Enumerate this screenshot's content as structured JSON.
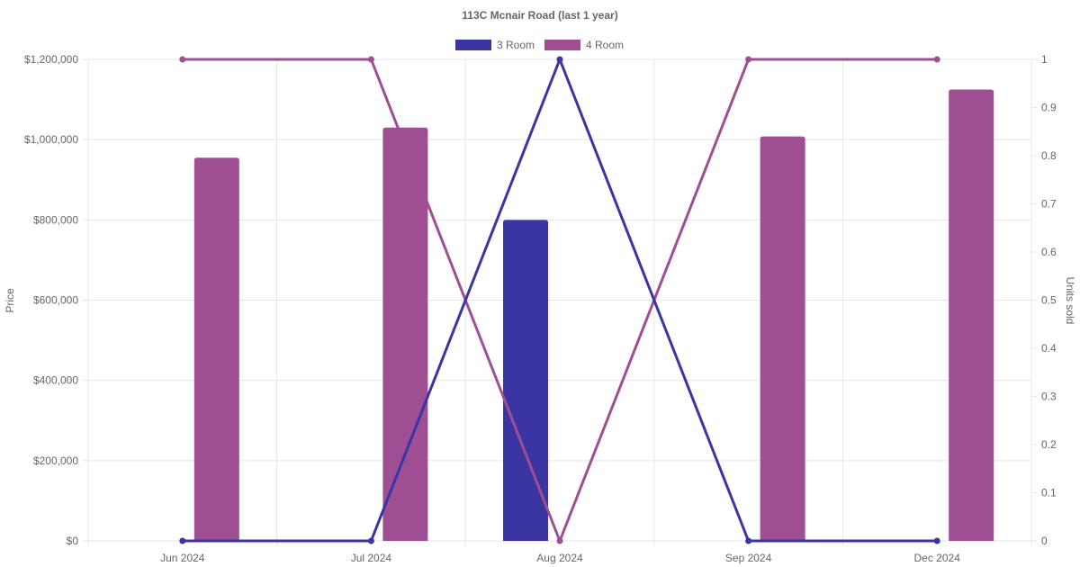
{
  "chart_data": {
    "type": "bar",
    "title": "113C Mcnair Road (last 1 year)",
    "categories": [
      "Jun 2024",
      "Jul 2024",
      "Aug 2024",
      "Sep 2024",
      "Dec 2024"
    ],
    "series": [
      {
        "name": "3 Room",
        "color": "#3a35a3",
        "price": [
          null,
          null,
          800000,
          null,
          null
        ],
        "units_sold": [
          0,
          0,
          1,
          0,
          0
        ]
      },
      {
        "name": "4 Room",
        "color": "#9e4f93",
        "price": [
          955000,
          1030000,
          null,
          1008000,
          1125000
        ],
        "units_sold": [
          1,
          1,
          0,
          1,
          1
        ]
      }
    ],
    "y_left": {
      "label": "Price",
      "range": [
        0,
        1200000
      ],
      "ticks": [
        "$0",
        "$200,000",
        "$400,000",
        "$600,000",
        "$800,000",
        "$1,000,000",
        "$1,200,000"
      ]
    },
    "y_right": {
      "label": "Units sold",
      "range": [
        0,
        1
      ],
      "ticks": [
        "0",
        "0.1",
        "0.2",
        "0.3",
        "0.4",
        "0.5",
        "0.6",
        "0.7",
        "0.8",
        "0.9",
        "1"
      ]
    },
    "grid": true,
    "legend_position": "top"
  }
}
